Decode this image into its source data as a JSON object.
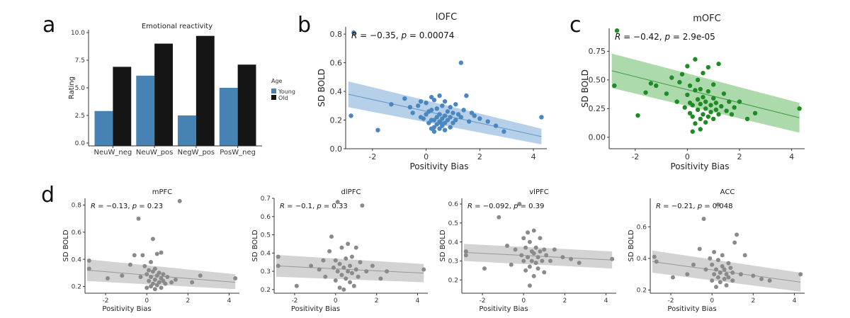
{
  "panel_letters": [
    "a",
    "b",
    "c",
    "d"
  ],
  "colors": {
    "young": "#4682b4",
    "old": "#151515",
    "blue": "#4a86c0",
    "blue_band": "#a9c8e6",
    "green": "#1e8b25",
    "green_band": "#9fd39d",
    "gray": "#8a8a8a",
    "gray_band": "#cbcbcb"
  },
  "chart_data": [
    {
      "id": "a",
      "type": "bar",
      "title": "Emotional reactivity",
      "xlabel": "",
      "ylabel": "Rating",
      "categories": [
        "NeuW_neg",
        "NeuW_pos",
        "NegW_pos",
        "PosW_neg"
      ],
      "series": [
        {
          "name": "Young",
          "values": [
            2.9,
            6.1,
            2.5,
            5.0
          ]
        },
        {
          "name": "Old",
          "values": [
            6.9,
            9.0,
            9.7,
            7.1
          ]
        }
      ],
      "ylim": [
        0,
        10
      ],
      "yticks": [
        "0.0",
        "2.5",
        "5.0",
        "7.5",
        "10.0"
      ],
      "legend": {
        "title": "Age",
        "position": "right"
      },
      "grid": false
    },
    {
      "id": "b",
      "type": "scatter",
      "title": "lOFC",
      "xlabel": "Positivity Bias",
      "ylabel": "SD BOLD",
      "annotation": {
        "r": "R = −0.35, p = 0.00074"
      },
      "xlim": [
        -3,
        4.5
      ],
      "ylim": [
        0,
        0.85
      ],
      "xticks": [
        -2,
        0,
        2,
        4
      ],
      "yticks": [
        "0.0",
        "0.2",
        "0.4",
        "0.6",
        "0.8"
      ],
      "fit": {
        "x": [
          -2.9,
          4.3
        ],
        "y": [
          0.38,
          0.085
        ],
        "band_lo": [
          0.29,
          0.03
        ],
        "band_hi": [
          0.47,
          0.14
        ]
      },
      "points": [
        [
          -2.7,
          0.81
        ],
        [
          -2.8,
          0.23
        ],
        [
          -1.8,
          0.13
        ],
        [
          -1.3,
          0.31
        ],
        [
          -0.8,
          0.35
        ],
        [
          -0.6,
          0.29
        ],
        [
          -0.5,
          0.25
        ],
        [
          -0.3,
          0.3
        ],
        [
          -0.2,
          0.33
        ],
        [
          -0.1,
          0.21
        ],
        [
          0,
          0.24
        ],
        [
          0,
          0.32
        ],
        [
          0.1,
          0.18
        ],
        [
          0.1,
          0.26
        ],
        [
          0.2,
          0.2
        ],
        [
          0.2,
          0.27
        ],
        [
          0.2,
          0.36
        ],
        [
          0.3,
          0.12
        ],
        [
          0.3,
          0.15
        ],
        [
          0.3,
          0.2
        ],
        [
          0.3,
          0.34
        ],
        [
          0.4,
          0.17
        ],
        [
          0.4,
          0.22
        ],
        [
          0.4,
          0.28
        ],
        [
          0.5,
          0.14
        ],
        [
          0.5,
          0.19
        ],
        [
          0.5,
          0.24
        ],
        [
          0.5,
          0.37
        ],
        [
          0.6,
          0.16
        ],
        [
          0.6,
          0.21
        ],
        [
          0.6,
          0.3
        ],
        [
          0.7,
          0.13
        ],
        [
          0.7,
          0.18
        ],
        [
          0.7,
          0.23
        ],
        [
          0.7,
          0.33
        ],
        [
          0.8,
          0.2
        ],
        [
          0.8,
          0.26
        ],
        [
          0.9,
          0.15
        ],
        [
          0.9,
          0.22
        ],
        [
          0.9,
          0.29
        ],
        [
          1,
          0.18
        ],
        [
          1,
          0.25
        ],
        [
          1.1,
          0.2
        ],
        [
          1.1,
          0.31
        ],
        [
          1.2,
          0.24
        ],
        [
          1.3,
          0.6
        ],
        [
          1.3,
          0.22
        ],
        [
          1.4,
          0.27
        ],
        [
          1.5,
          0.37
        ],
        [
          1.6,
          0.19
        ],
        [
          1.7,
          0.25
        ],
        [
          1.8,
          0.23
        ],
        [
          2,
          0.21
        ],
        [
          2.3,
          0.19
        ],
        [
          2.6,
          0.16
        ],
        [
          2.9,
          0.12
        ],
        [
          4.3,
          0.22
        ],
        [
          -0.2,
          0.22
        ],
        [
          0.2,
          0.14
        ],
        [
          0.55,
          0.18
        ]
      ]
    },
    {
      "id": "c",
      "type": "scatter",
      "title": "mOFC",
      "xlabel": "Positivity Bias",
      "ylabel": "SD BOLD",
      "annotation": {
        "r": "R = −0.42, p = 2.9e-05"
      },
      "xlim": [
        -3,
        4.5
      ],
      "ylim": [
        -0.1,
        0.95
      ],
      "xticks": [
        -2,
        0,
        2,
        4
      ],
      "yticks": [
        "0.00",
        "0.25",
        "0.50",
        "0.75"
      ],
      "fit": {
        "x": [
          -2.9,
          4.3
        ],
        "y": [
          0.58,
          0.17
        ],
        "band_lo": [
          0.43,
          0.04
        ],
        "band_hi": [
          0.73,
          0.3
        ]
      },
      "points": [
        [
          -2.7,
          0.93
        ],
        [
          -2.8,
          0.45
        ],
        [
          -1.9,
          0.19
        ],
        [
          -1.6,
          0.39
        ],
        [
          -1.4,
          0.47
        ],
        [
          -1.2,
          0.45
        ],
        [
          -0.8,
          0.38
        ],
        [
          -0.6,
          0.52
        ],
        [
          -0.4,
          0.31
        ],
        [
          -0.3,
          0.48
        ],
        [
          -0.2,
          0.55
        ],
        [
          -0.1,
          0.26
        ],
        [
          0,
          0.37
        ],
        [
          0,
          0.62
        ],
        [
          0.1,
          0.21
        ],
        [
          0.1,
          0.3
        ],
        [
          0.1,
          0.45
        ],
        [
          0.2,
          0.28
        ],
        [
          0.2,
          0.18
        ],
        [
          0.3,
          0.68
        ],
        [
          0.3,
          0.41
        ],
        [
          0.3,
          0.12
        ],
        [
          0.4,
          0.33
        ],
        [
          0.4,
          0.24
        ],
        [
          0.4,
          0.5
        ],
        [
          0.5,
          0.16
        ],
        [
          0.5,
          0.29
        ],
        [
          0.5,
          0.42
        ],
        [
          0.6,
          0.2
        ],
        [
          0.6,
          0.35
        ],
        [
          0.6,
          0.56
        ],
        [
          0.7,
          0.13
        ],
        [
          0.7,
          0.25
        ],
        [
          0.7,
          0.31
        ],
        [
          0.8,
          0.18
        ],
        [
          0.8,
          0.4
        ],
        [
          0.8,
          0.61
        ],
        [
          0.9,
          0.22
        ],
        [
          0.9,
          0.28
        ],
        [
          1,
          0.16
        ],
        [
          1,
          0.34
        ],
        [
          1,
          0.46
        ],
        [
          1.1,
          0.24
        ],
        [
          1.1,
          0.3
        ],
        [
          1.2,
          0.2
        ],
        [
          1.2,
          0.64
        ],
        [
          1.3,
          0.27
        ],
        [
          1.4,
          0.38
        ],
        [
          1.5,
          0.23
        ],
        [
          1.6,
          0.31
        ],
        [
          1.7,
          0.2
        ],
        [
          1.8,
          0.26
        ],
        [
          2,
          0.31
        ],
        [
          2.3,
          0.16
        ],
        [
          2.6,
          0.21
        ],
        [
          4.3,
          0.25
        ],
        [
          0.2,
          0.05
        ],
        [
          0.5,
          0.07
        ]
      ]
    },
    {
      "id": "d1",
      "type": "scatter",
      "title": "mPFC",
      "xlabel": "Positivity Bias",
      "ylabel": "SD BOLD",
      "annotation": {
        "r": "R = −0.13, p = 0.23"
      },
      "xlim": [
        -3,
        4.5
      ],
      "ylim": [
        0.15,
        0.85
      ],
      "xticks": [
        -2,
        0,
        2,
        4
      ],
      "yticks": [
        "0.2",
        "0.4",
        "0.6",
        "0.8"
      ],
      "fit": {
        "x": [
          -2.9,
          4.3
        ],
        "y": [
          0.32,
          0.23
        ],
        "band_lo": [
          0.24,
          0.18
        ],
        "band_hi": [
          0.4,
          0.29
        ]
      },
      "points": [
        [
          -2.8,
          0.39
        ],
        [
          -2.8,
          0.33
        ],
        [
          -1.9,
          0.26
        ],
        [
          -1.2,
          0.28
        ],
        [
          -0.8,
          0.36
        ],
        [
          -0.6,
          0.43
        ],
        [
          -0.4,
          0.7
        ],
        [
          -0.3,
          0.27
        ],
        [
          -0.2,
          0.43
        ],
        [
          -0.1,
          0.35
        ],
        [
          0,
          0.19
        ],
        [
          0,
          0.29
        ],
        [
          0.1,
          0.24
        ],
        [
          0.1,
          0.32
        ],
        [
          0.2,
          0.2
        ],
        [
          0.2,
          0.27
        ],
        [
          0.2,
          0.38
        ],
        [
          0.3,
          0.22
        ],
        [
          0.3,
          0.31
        ],
        [
          0.3,
          0.55
        ],
        [
          0.4,
          0.18
        ],
        [
          0.4,
          0.25
        ],
        [
          0.4,
          0.33
        ],
        [
          0.5,
          0.21
        ],
        [
          0.5,
          0.28
        ],
        [
          0.5,
          0.44
        ],
        [
          0.6,
          0.23
        ],
        [
          0.6,
          0.3
        ],
        [
          0.7,
          0.19
        ],
        [
          0.7,
          0.26
        ],
        [
          0.7,
          0.45
        ],
        [
          0.8,
          0.24
        ],
        [
          0.8,
          0.29
        ],
        [
          0.9,
          0.22
        ],
        [
          1,
          0.27
        ],
        [
          1.2,
          0.23
        ],
        [
          1.4,
          0.25
        ],
        [
          1.6,
          0.83
        ],
        [
          2.2,
          0.23
        ],
        [
          2.6,
          0.28
        ],
        [
          4.3,
          0.26
        ]
      ]
    },
    {
      "id": "d2",
      "type": "scatter",
      "title": "dlPFC",
      "xlabel": "Positivity Bias",
      "ylabel": "SD BOLD",
      "annotation": {
        "r": "R = −0.1, p = 0.33"
      },
      "xlim": [
        -3,
        4.5
      ],
      "ylim": [
        0.18,
        0.7
      ],
      "xticks": [
        -2,
        0,
        2,
        4
      ],
      "yticks": [
        "0.2",
        "0.3",
        "0.4",
        "0.5",
        "0.6",
        "0.7"
      ],
      "fit": {
        "x": [
          -2.9,
          4.3
        ],
        "y": [
          0.33,
          0.29
        ],
        "band_lo": [
          0.27,
          0.24
        ],
        "band_hi": [
          0.39,
          0.34
        ]
      },
      "points": [
        [
          -2.8,
          0.38
        ],
        [
          -2.8,
          0.33
        ],
        [
          -1.9,
          0.22
        ],
        [
          -1.2,
          0.33
        ],
        [
          -0.8,
          0.31
        ],
        [
          -0.6,
          0.36
        ],
        [
          -0.5,
          0.27
        ],
        [
          -0.3,
          0.41
        ],
        [
          -0.2,
          0.49
        ],
        [
          -0.1,
          0.32
        ],
        [
          0,
          0.36
        ],
        [
          0,
          0.25
        ],
        [
          0.1,
          0.68
        ],
        [
          0.1,
          0.3
        ],
        [
          0.2,
          0.21
        ],
        [
          0.2,
          0.34
        ],
        [
          0.3,
          0.43
        ],
        [
          0.3,
          0.28
        ],
        [
          0.4,
          0.2
        ],
        [
          0.4,
          0.32
        ],
        [
          0.5,
          0.37
        ],
        [
          0.5,
          0.26
        ],
        [
          0.6,
          0.3
        ],
        [
          0.6,
          0.45
        ],
        [
          0.7,
          0.24
        ],
        [
          0.7,
          0.33
        ],
        [
          0.8,
          0.29
        ],
        [
          0.8,
          0.38
        ],
        [
          0.9,
          0.22
        ],
        [
          1,
          0.31
        ],
        [
          1,
          0.43
        ],
        [
          1.1,
          0.27
        ],
        [
          1.2,
          0.35
        ],
        [
          1.3,
          0.66
        ],
        [
          1.5,
          0.3
        ],
        [
          1.8,
          0.33
        ],
        [
          2.2,
          0.26
        ],
        [
          2.5,
          0.3
        ],
        [
          4.3,
          0.31
        ]
      ]
    },
    {
      "id": "d3",
      "type": "scatter",
      "title": "vlPFC",
      "xlabel": "Positivity Bias",
      "ylabel": "SD BOLD",
      "annotation": {
        "r": "R = −0.092, p = 0.39"
      },
      "xlim": [
        -3,
        4.5
      ],
      "ylim": [
        0.13,
        0.63
      ],
      "xticks": [
        -2,
        0,
        2,
        4
      ],
      "yticks": [
        "0.2",
        "0.3",
        "0.4",
        "0.5",
        "0.6"
      ],
      "fit": {
        "x": [
          -2.9,
          4.3
        ],
        "y": [
          0.345,
          0.305
        ],
        "band_lo": [
          0.3,
          0.26
        ],
        "band_hi": [
          0.39,
          0.35
        ]
      },
      "points": [
        [
          -2.8,
          0.35
        ],
        [
          -2.8,
          0.33
        ],
        [
          -1.9,
          0.26
        ],
        [
          -1.2,
          0.53
        ],
        [
          -0.8,
          0.38
        ],
        [
          -0.6,
          0.28
        ],
        [
          -0.4,
          0.36
        ],
        [
          -0.2,
          0.6
        ],
        [
          -0.1,
          0.33
        ],
        [
          0,
          0.42
        ],
        [
          0,
          0.3
        ],
        [
          0.1,
          0.25
        ],
        [
          0.1,
          0.37
        ],
        [
          0.2,
          0.45
        ],
        [
          0.2,
          0.32
        ],
        [
          0.3,
          0.4
        ],
        [
          0.3,
          0.27
        ],
        [
          0.3,
          0.17
        ],
        [
          0.4,
          0.35
        ],
        [
          0.4,
          0.3
        ],
        [
          0.5,
          0.22
        ],
        [
          0.5,
          0.34
        ],
        [
          0.5,
          0.46
        ],
        [
          0.6,
          0.29
        ],
        [
          0.6,
          0.37
        ],
        [
          0.7,
          0.32
        ],
        [
          0.7,
          0.26
        ],
        [
          0.8,
          0.35
        ],
        [
          0.8,
          0.42
        ],
        [
          0.9,
          0.3
        ],
        [
          1,
          0.36
        ],
        [
          1,
          0.24
        ],
        [
          1.1,
          0.33
        ],
        [
          1.3,
          0.3
        ],
        [
          1.5,
          0.36
        ],
        [
          1.9,
          0.32
        ],
        [
          2.3,
          0.31
        ],
        [
          2.7,
          0.29
        ],
        [
          4.3,
          0.31
        ]
      ]
    },
    {
      "id": "d4",
      "type": "scatter",
      "title": "ACC",
      "xlabel": "Positivity Bias",
      "ylabel": "SD BOLD",
      "annotation": {
        "r": "R = −0.21, p = 0.048"
      },
      "xlim": [
        -3,
        4.5
      ],
      "ylim": [
        0.18,
        0.78
      ],
      "xticks": [
        -2,
        0,
        2,
        4
      ],
      "yticks": [
        "0.2",
        "0.4",
        "0.6"
      ],
      "fit": {
        "x": [
          -2.9,
          4.3
        ],
        "y": [
          0.38,
          0.25
        ],
        "band_lo": [
          0.31,
          0.19
        ],
        "band_hi": [
          0.45,
          0.31
        ]
      },
      "points": [
        [
          -2.8,
          0.41
        ],
        [
          -2.7,
          0.38
        ],
        [
          -1.9,
          0.28
        ],
        [
          -1.2,
          0.3
        ],
        [
          -0.9,
          0.36
        ],
        [
          -0.6,
          0.46
        ],
        [
          -0.4,
          0.65
        ],
        [
          -0.3,
          0.33
        ],
        [
          -0.1,
          0.4
        ],
        [
          0,
          0.26
        ],
        [
          0,
          0.36
        ],
        [
          0.1,
          0.3
        ],
        [
          0.1,
          0.44
        ],
        [
          0.2,
          0.22
        ],
        [
          0.2,
          0.33
        ],
        [
          0.3,
          0.28
        ],
        [
          0.3,
          0.39
        ],
        [
          0.3,
          0.74
        ],
        [
          0.4,
          0.25
        ],
        [
          0.4,
          0.31
        ],
        [
          0.5,
          0.35
        ],
        [
          0.5,
          0.42
        ],
        [
          0.6,
          0.27
        ],
        [
          0.6,
          0.33
        ],
        [
          0.7,
          0.23
        ],
        [
          0.7,
          0.3
        ],
        [
          0.8,
          0.37
        ],
        [
          0.8,
          0.28
        ],
        [
          0.9,
          0.34
        ],
        [
          1,
          0.31
        ],
        [
          1,
          0.26
        ],
        [
          1.1,
          0.5
        ],
        [
          1.2,
          0.55
        ],
        [
          1.4,
          0.3
        ],
        [
          1.6,
          0.42
        ],
        [
          2,
          0.29
        ],
        [
          2.4,
          0.27
        ],
        [
          2.8,
          0.26
        ],
        [
          4.3,
          0.3
        ]
      ]
    }
  ]
}
